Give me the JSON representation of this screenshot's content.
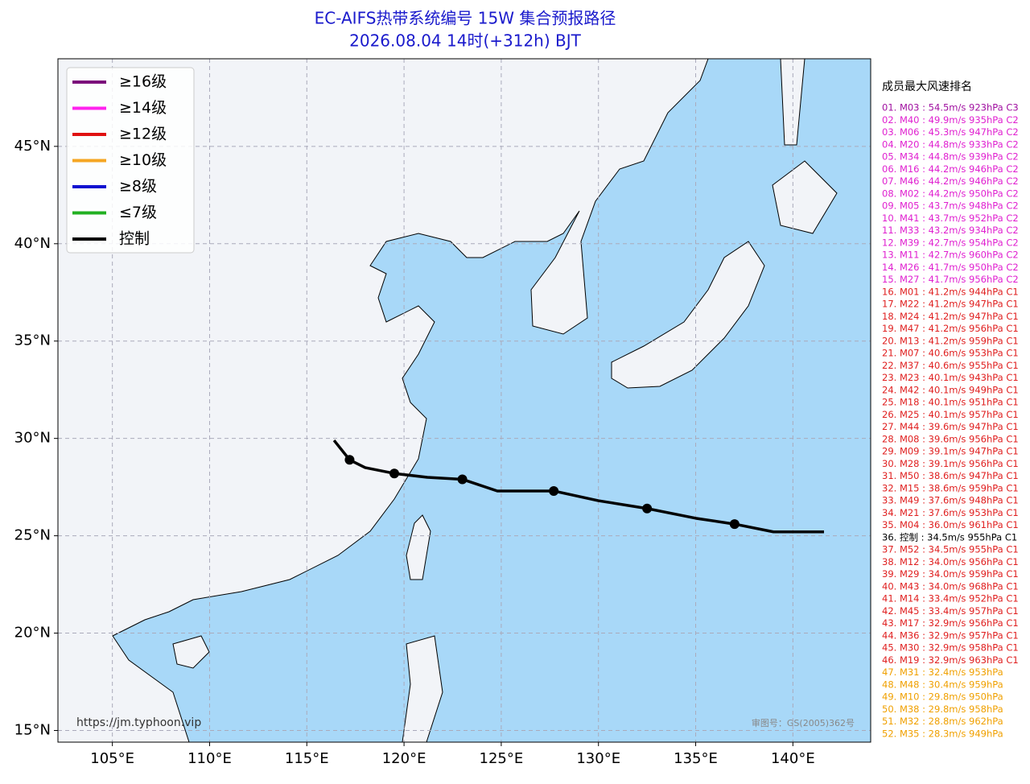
{
  "chart_data": {
    "type": "track-map",
    "title": "EC-AIFS热带系统编号 15W 集合预报路径",
    "subtitle": "2026.08.04 14时(+312h) BJT",
    "xlim": [
      102.2,
      144.0
    ],
    "ylim": [
      14.4,
      49.5
    ],
    "xticks": [
      {
        "value": 105,
        "label": "105°E"
      },
      {
        "value": 110,
        "label": "110°E"
      },
      {
        "value": 115,
        "label": "115°E"
      },
      {
        "value": 120,
        "label": "120°E"
      },
      {
        "value": 125,
        "label": "125°E"
      },
      {
        "value": 130,
        "label": "130°E"
      },
      {
        "value": 135,
        "label": "135°E"
      },
      {
        "value": 140,
        "label": "140°E"
      }
    ],
    "yticks": [
      {
        "value": 15,
        "label": "15°N"
      },
      {
        "value": 20,
        "label": "20°N"
      },
      {
        "value": 25,
        "label": "25°N"
      },
      {
        "value": 30,
        "label": "30°N"
      },
      {
        "value": 35,
        "label": "35°N"
      },
      {
        "value": 40,
        "label": "40°N"
      },
      {
        "value": 45,
        "label": "45°N"
      }
    ],
    "grid": true,
    "legend": [
      {
        "name": "≥16级",
        "color": "#7b0f7b"
      },
      {
        "name": "≥14级",
        "color": "#ff22ee"
      },
      {
        "name": "≥12级",
        "color": "#e01010"
      },
      {
        "name": "≥10级",
        "color": "#f5a623"
      },
      {
        "name": "≥8级",
        "color": "#1010d0"
      },
      {
        "name": "≤7级",
        "color": "#22b022"
      },
      {
        "name": "控制",
        "color": "#000000"
      }
    ],
    "series": [
      {
        "name": "控制",
        "color": "#000000",
        "x": [
          141.6,
          139.0,
          137.0,
          135.0,
          132.5,
          130.0,
          127.7,
          124.8,
          123.0,
          121.2,
          119.5,
          118.0,
          117.2,
          116.4
        ],
        "values": [
          25.2,
          25.2,
          25.6,
          25.9,
          26.4,
          26.8,
          27.3,
          27.3,
          27.9,
          28.0,
          28.2,
          28.5,
          28.9,
          29.9
        ]
      }
    ],
    "ranking_title": "成员最大风速排名",
    "ranking": [
      {
        "text": "01. M03 : 54.5m/s 923hPa C3",
        "color": "#a010a0"
      },
      {
        "text": "02. M40 : 49.9m/s 935hPa C2",
        "color": "#e020d0"
      },
      {
        "text": "03. M06 : 45.3m/s 947hPa C2",
        "color": "#e020d0"
      },
      {
        "text": "04. M20 : 44.8m/s 933hPa C2",
        "color": "#e020d0"
      },
      {
        "text": "05. M34 : 44.8m/s 939hPa C2",
        "color": "#e020d0"
      },
      {
        "text": "06. M16 : 44.2m/s 946hPa C2",
        "color": "#e020d0"
      },
      {
        "text": "07. M46 : 44.2m/s 946hPa C2",
        "color": "#e020d0"
      },
      {
        "text": "08. M02 : 44.2m/s 950hPa C2",
        "color": "#e020d0"
      },
      {
        "text": "09. M05 : 43.7m/s 948hPa C2",
        "color": "#e020d0"
      },
      {
        "text": "10. M41 : 43.7m/s 952hPa C2",
        "color": "#e020d0"
      },
      {
        "text": "11. M33 : 43.2m/s 934hPa C2",
        "color": "#e020d0"
      },
      {
        "text": "12. M39 : 42.7m/s 954hPa C2",
        "color": "#e020d0"
      },
      {
        "text": "13. M11 : 42.7m/s 960hPa C2",
        "color": "#e020d0"
      },
      {
        "text": "14. M26 : 41.7m/s 950hPa C2",
        "color": "#e020d0"
      },
      {
        "text": "15. M27 : 41.7m/s 956hPa C2",
        "color": "#e020d0"
      },
      {
        "text": "16. M01 : 41.2m/s 944hPa C1",
        "color": "#e02020"
      },
      {
        "text": "17. M22 : 41.2m/s 947hPa C1",
        "color": "#e02020"
      },
      {
        "text": "18. M24 : 41.2m/s 947hPa C1",
        "color": "#e02020"
      },
      {
        "text": "19. M47 : 41.2m/s 956hPa C1",
        "color": "#e02020"
      },
      {
        "text": "20. M13 : 41.2m/s 959hPa C1",
        "color": "#e02020"
      },
      {
        "text": "21. M07 : 40.6m/s 953hPa C1",
        "color": "#e02020"
      },
      {
        "text": "22. M37 : 40.6m/s 955hPa C1",
        "color": "#e02020"
      },
      {
        "text": "23. M23 : 40.1m/s 943hPa C1",
        "color": "#e02020"
      },
      {
        "text": "24. M42 : 40.1m/s 949hPa C1",
        "color": "#e02020"
      },
      {
        "text": "25. M18 : 40.1m/s 951hPa C1",
        "color": "#e02020"
      },
      {
        "text": "26. M25 : 40.1m/s 957hPa C1",
        "color": "#e02020"
      },
      {
        "text": "27. M44 : 39.6m/s 947hPa C1",
        "color": "#e02020"
      },
      {
        "text": "28. M08 : 39.6m/s 956hPa C1",
        "color": "#e02020"
      },
      {
        "text": "29. M09 : 39.1m/s 947hPa C1",
        "color": "#e02020"
      },
      {
        "text": "30. M28 : 39.1m/s 956hPa C1",
        "color": "#e02020"
      },
      {
        "text": "31. M50 : 38.6m/s 947hPa C1",
        "color": "#e02020"
      },
      {
        "text": "32. M15 : 38.6m/s 959hPa C1",
        "color": "#e02020"
      },
      {
        "text": "33. M49 : 37.6m/s 948hPa C1",
        "color": "#e02020"
      },
      {
        "text": "34. M21 : 37.6m/s 953hPa C1",
        "color": "#e02020"
      },
      {
        "text": "35. M04 : 36.0m/s 961hPa C1",
        "color": "#e02020"
      },
      {
        "text": "36. 控制 : 34.5m/s 955hPa C1",
        "color": "#000000"
      },
      {
        "text": "37. M52 : 34.5m/s 955hPa C1",
        "color": "#e02020"
      },
      {
        "text": "38. M12 : 34.0m/s 956hPa C1",
        "color": "#e02020"
      },
      {
        "text": "39. M29 : 34.0m/s 959hPa C1",
        "color": "#e02020"
      },
      {
        "text": "40. M43 : 34.0m/s 968hPa C1",
        "color": "#e02020"
      },
      {
        "text": "41. M14 : 33.4m/s 952hPa C1",
        "color": "#e02020"
      },
      {
        "text": "42. M45 : 33.4m/s 957hPa C1",
        "color": "#e02020"
      },
      {
        "text": "43. M17 : 32.9m/s 956hPa C1",
        "color": "#e02020"
      },
      {
        "text": "44. M36 : 32.9m/s 957hPa C1",
        "color": "#e02020"
      },
      {
        "text": "45. M30 : 32.9m/s 958hPa C1",
        "color": "#e02020"
      },
      {
        "text": "46. M19 : 32.9m/s 963hPa C1",
        "color": "#e02020"
      },
      {
        "text": "47. M31 : 32.4m/s 953hPa",
        "color": "#f0a000"
      },
      {
        "text": "48. M48 : 30.4m/s 959hPa",
        "color": "#f0a000"
      },
      {
        "text": "49. M10 : 29.8m/s 950hPa",
        "color": "#f0a000"
      },
      {
        "text": "50. M38 : 29.8m/s 958hPa",
        "color": "#f0a000"
      },
      {
        "text": "51. M32 : 28.8m/s 962hPa",
        "color": "#f0a000"
      },
      {
        "text": "52. M35 : 28.3m/s 949hPa",
        "color": "#f0a000"
      }
    ],
    "source": "https://jm.typhoon.vip",
    "approval": "审图号：GS(2005)362号"
  }
}
